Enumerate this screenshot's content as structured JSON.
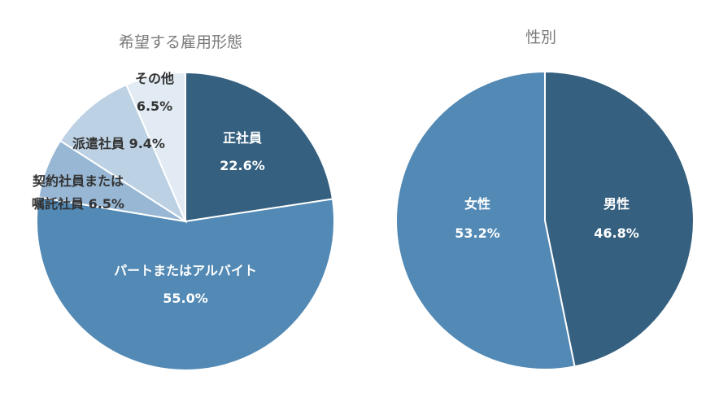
{
  "chart_data": [
    {
      "type": "pie",
      "title": "希望する雇用形態",
      "slices": [
        {
          "label": "正社員",
          "value": 22.6,
          "value_label": "22.6%",
          "color": "#35607F",
          "label_color": "light"
        },
        {
          "label": "パートまたはアルバイト",
          "value": 55.0,
          "value_label": "55.0%",
          "color": "#5289B5",
          "label_color": "light"
        },
        {
          "label": "契約社員または嘱託社員",
          "value": 6.5,
          "value_label": "6.5%",
          "color": "#97B7D4",
          "label_color": "dark"
        },
        {
          "label": "派遣社員",
          "value": 9.4,
          "value_label": "9.4%",
          "color": "#BDD1E4",
          "label_color": "dark"
        },
        {
          "label": "その他",
          "value": 6.5,
          "value_label": "6.5%",
          "color": "#E2EBF3",
          "label_color": "dark"
        }
      ]
    },
    {
      "type": "pie",
      "title": "性別",
      "slices": [
        {
          "label": "男性",
          "value": 46.8,
          "value_label": "46.8%",
          "color": "#35607F",
          "label_color": "light"
        },
        {
          "label": "女性",
          "value": 53.2,
          "value_label": "53.2%",
          "color": "#5289B5",
          "label_color": "light"
        }
      ]
    }
  ]
}
